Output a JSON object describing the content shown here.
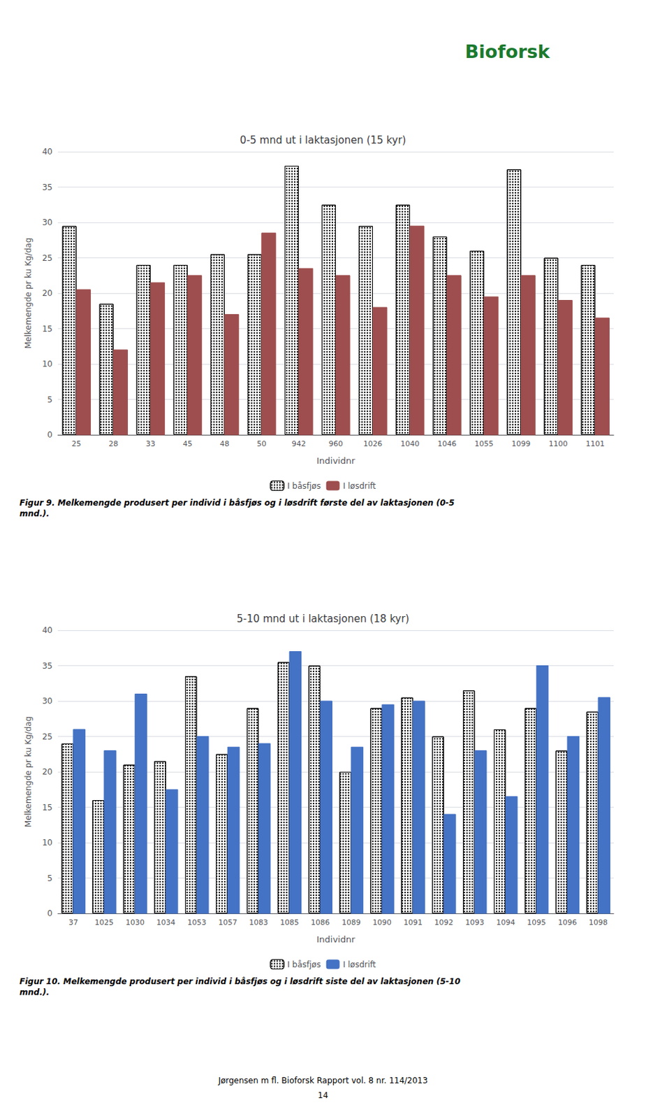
{
  "chart_data": [
    {
      "type": "bar",
      "title": "0-5 mnd ut i laktasjonen (15 kyr)",
      "xlabel": "Individnr",
      "ylabel": "Melkemengde pr ku Kg/dag",
      "categories": [
        "25",
        "28",
        "33",
        "45",
        "48",
        "50",
        "942",
        "960",
        "1026",
        "1040",
        "1046",
        "1055",
        "1099",
        "1100",
        "1101"
      ],
      "series": [
        {
          "name": "I båsfjøs",
          "color": "#ffffff",
          "values": [
            29.5,
            18.5,
            24.0,
            24.0,
            25.5,
            25.5,
            38.0,
            32.5,
            29.5,
            32.5,
            28.0,
            26.0,
            37.5,
            25.0,
            24.0
          ]
        },
        {
          "name": "I løsdrift",
          "color": "#9e4e4e",
          "values": [
            20.5,
            12.0,
            21.5,
            22.5,
            17.0,
            28.5,
            23.5,
            22.5,
            18.0,
            29.5,
            22.5,
            19.5,
            22.5,
            19.0,
            16.5
          ]
        }
      ],
      "ylim": [
        0,
        40
      ],
      "yticks": [
        0,
        5,
        10,
        15,
        20,
        25,
        30,
        35,
        40
      ],
      "grid": true,
      "legend": "bottom",
      "annotations": [
        "Figur 9. Melkemengde produsert per individ i båsfjøs og i løsdrift første del av laktasjonen (0-5\nmnd.).",
        "Bioforsk"
      ]
    },
    {
      "type": "bar",
      "title": "5-10 mnd ut i laktasjonen (18 kyr)",
      "xlabel": "Individnr",
      "ylabel": "Melkemengde pr ku Kg/dag",
      "categories": [
        "37",
        "1025",
        "1030",
        "1034",
        "1053",
        "1057",
        "1083",
        "1085",
        "1086",
        "1089",
        "1090",
        "1091",
        "1092",
        "1093",
        "1094",
        "1095",
        "1096",
        "1098"
      ],
      "series": [
        {
          "name": "I båsfjøs",
          "color": "#ffffff",
          "values": [
            24.0,
            16.0,
            21.0,
            21.5,
            33.5,
            22.5,
            29.0,
            35.5,
            35.0,
            20.0,
            29.0,
            30.5,
            25.0,
            31.5,
            26.0,
            29.0,
            23.0,
            28.5
          ]
        },
        {
          "name": "I løsdrift",
          "color": "#4472c4",
          "values": [
            26.0,
            23.0,
            31.0,
            17.5,
            25.0,
            23.5,
            24.0,
            37.0,
            30.0,
            23.5,
            29.5,
            30.0,
            14.0,
            23.0,
            16.5,
            35.0,
            25.0,
            30.5
          ]
        }
      ],
      "ylim": [
        0,
        40
      ],
      "yticks": [
        0,
        5,
        10,
        15,
        20,
        25,
        30,
        35,
        40
      ],
      "grid": true,
      "legend": "bottom",
      "annotations": [
        "Figur 10. Melkemengde produsert per individ i båsfjøs og i løsdrift siste del av laktasjonen (5-10\nmnd.).",
        "Jørgensen m fl. Bioforsk Rapport vol. 8 nr. 114/2013",
        "14"
      ]
    }
  ]
}
